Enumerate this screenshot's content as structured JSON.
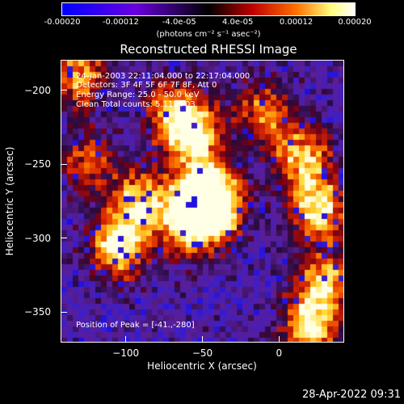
{
  "colorbar": {
    "ticks": [
      "-0.00020",
      "-0.00012",
      "-4.0e-05",
      "4.0e-05",
      "0.00012",
      "0.00020"
    ],
    "tick_values": [
      -0.0002,
      -0.00012,
      -4e-05,
      4e-05,
      0.00012,
      0.0002
    ],
    "range": [
      -0.0002,
      0.0002
    ],
    "unit_label": "(photons cm⁻² s⁻¹ asec⁻²)",
    "colors": [
      "#0000ff",
      "#6a00e0",
      "#000000",
      "#c00000",
      "#ff7000",
      "#ffff80",
      "#ffffff"
    ]
  },
  "chart_data": {
    "type": "heatmap",
    "title": "Reconstructed RHESSI Image",
    "xlabel": "Heliocentric X (arcsec)",
    "ylabel": "Heliocentric Y (arcsec)",
    "xlim": [
      -142,
      42
    ],
    "ylim": [
      -370,
      -180
    ],
    "xticks": [
      -100,
      -50,
      0
    ],
    "xtick_labels": [
      "−100",
      "−50",
      "0"
    ],
    "yticks": [
      -200,
      -250,
      -300,
      -350
    ],
    "ytick_labels": [
      "−200",
      "−250",
      "−300",
      "−350"
    ],
    "grid": false,
    "annotations": {
      "time_range": "24-Jan-2003 22:11:04.000 to 22:17:04.000",
      "detectors": "Detectors: 3F 4F 5F 6F 7F 8F, Att 0",
      "energy": "Energy Range: 25.0 - 50.0 keV",
      "method": "Clean     Total counts: 5.11E+03",
      "peak": "Position of Peak = [-41.,-280]"
    },
    "bright_regions": [
      {
        "x": -105,
        "y": -305,
        "level": 1.0
      },
      {
        "x": -90,
        "y": -275,
        "level": 0.85
      },
      {
        "x": -60,
        "y": -290,
        "level": 0.9
      },
      {
        "x": -50,
        "y": -270,
        "level": 1.0
      },
      {
        "x": -40,
        "y": -280,
        "level": 1.0
      },
      {
        "x": -55,
        "y": -230,
        "level": 0.9
      },
      {
        "x": -70,
        "y": -215,
        "level": 0.75
      },
      {
        "x": -10,
        "y": -215,
        "level": 0.7
      },
      {
        "x": 15,
        "y": -245,
        "level": 0.8
      },
      {
        "x": 25,
        "y": -280,
        "level": 0.95
      },
      {
        "x": 30,
        "y": -330,
        "level": 0.85
      },
      {
        "x": 20,
        "y": -360,
        "level": 0.9
      },
      {
        "x": -130,
        "y": -190,
        "level": 0.75
      },
      {
        "x": -125,
        "y": -250,
        "level": 0.55
      }
    ]
  },
  "timestamp": "28-Apr-2022 09:31"
}
